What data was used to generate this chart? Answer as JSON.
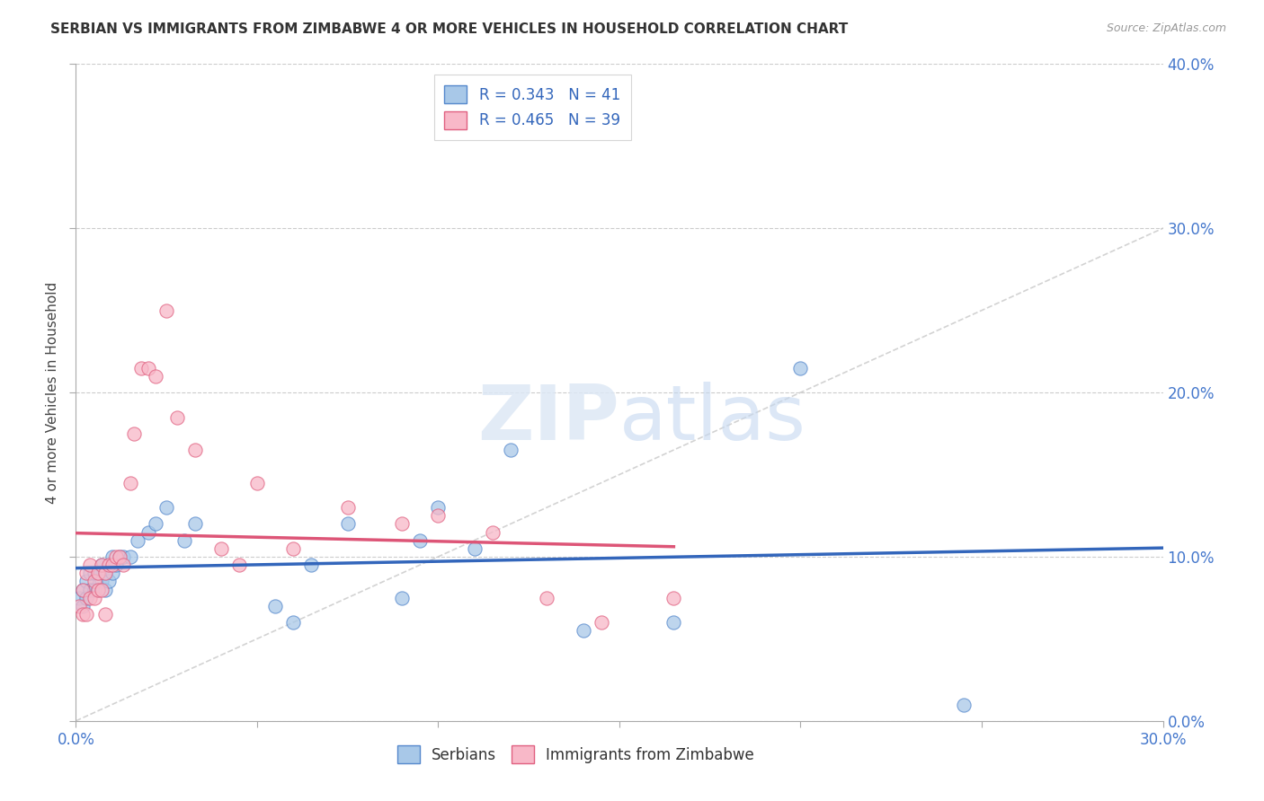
{
  "title": "SERBIAN VS IMMIGRANTS FROM ZIMBABWE 4 OR MORE VEHICLES IN HOUSEHOLD CORRELATION CHART",
  "source": "Source: ZipAtlas.com",
  "ylabel": "4 or more Vehicles in Household",
  "xlim": [
    0.0,
    0.3
  ],
  "ylim": [
    0.0,
    0.4
  ],
  "xtick_values": [
    0.0,
    0.05,
    0.1,
    0.15,
    0.2,
    0.25,
    0.3
  ],
  "ytick_values": [
    0.0,
    0.1,
    0.2,
    0.3,
    0.4
  ],
  "legend_entry1": "R = 0.343   N = 41",
  "legend_entry2": "R = 0.465   N = 39",
  "legend_label1": "Serbians",
  "legend_label2": "Immigrants from Zimbabwe",
  "color_serbian_fill": "#a8c8e8",
  "color_serbian_edge": "#5588cc",
  "color_zimbabwe_fill": "#f8b8c8",
  "color_zimbabwe_edge": "#e06080",
  "color_line_serbian": "#3366bb",
  "color_line_zimbabwe": "#dd5577",
  "color_diagonal": "#c8c8c8",
  "background_color": "#ffffff",
  "grid_color": "#cccccc",
  "serbian_x": [
    0.001,
    0.002,
    0.002,
    0.003,
    0.003,
    0.004,
    0.004,
    0.005,
    0.005,
    0.006,
    0.006,
    0.007,
    0.007,
    0.008,
    0.008,
    0.009,
    0.01,
    0.01,
    0.011,
    0.012,
    0.013,
    0.015,
    0.017,
    0.02,
    0.022,
    0.025,
    0.03,
    0.033,
    0.055,
    0.06,
    0.065,
    0.075,
    0.09,
    0.095,
    0.1,
    0.11,
    0.12,
    0.14,
    0.165,
    0.2,
    0.245
  ],
  "serbian_y": [
    0.075,
    0.08,
    0.07,
    0.085,
    0.075,
    0.08,
    0.09,
    0.08,
    0.09,
    0.08,
    0.09,
    0.085,
    0.095,
    0.08,
    0.09,
    0.085,
    0.09,
    0.1,
    0.095,
    0.1,
    0.1,
    0.1,
    0.11,
    0.115,
    0.12,
    0.13,
    0.11,
    0.12,
    0.07,
    0.06,
    0.095,
    0.12,
    0.075,
    0.11,
    0.13,
    0.105,
    0.165,
    0.055,
    0.06,
    0.215,
    0.01
  ],
  "zimbabwe_x": [
    0.001,
    0.002,
    0.002,
    0.003,
    0.003,
    0.004,
    0.004,
    0.005,
    0.005,
    0.006,
    0.006,
    0.007,
    0.007,
    0.008,
    0.008,
    0.009,
    0.01,
    0.011,
    0.012,
    0.013,
    0.015,
    0.016,
    0.018,
    0.02,
    0.022,
    0.025,
    0.028,
    0.033,
    0.04,
    0.045,
    0.05,
    0.06,
    0.075,
    0.09,
    0.1,
    0.115,
    0.13,
    0.145,
    0.165
  ],
  "zimbabwe_y": [
    0.07,
    0.08,
    0.065,
    0.09,
    0.065,
    0.075,
    0.095,
    0.075,
    0.085,
    0.08,
    0.09,
    0.095,
    0.08,
    0.09,
    0.065,
    0.095,
    0.095,
    0.1,
    0.1,
    0.095,
    0.145,
    0.175,
    0.215,
    0.215,
    0.21,
    0.25,
    0.185,
    0.165,
    0.105,
    0.095,
    0.145,
    0.105,
    0.13,
    0.12,
    0.125,
    0.115,
    0.075,
    0.06,
    0.075
  ]
}
